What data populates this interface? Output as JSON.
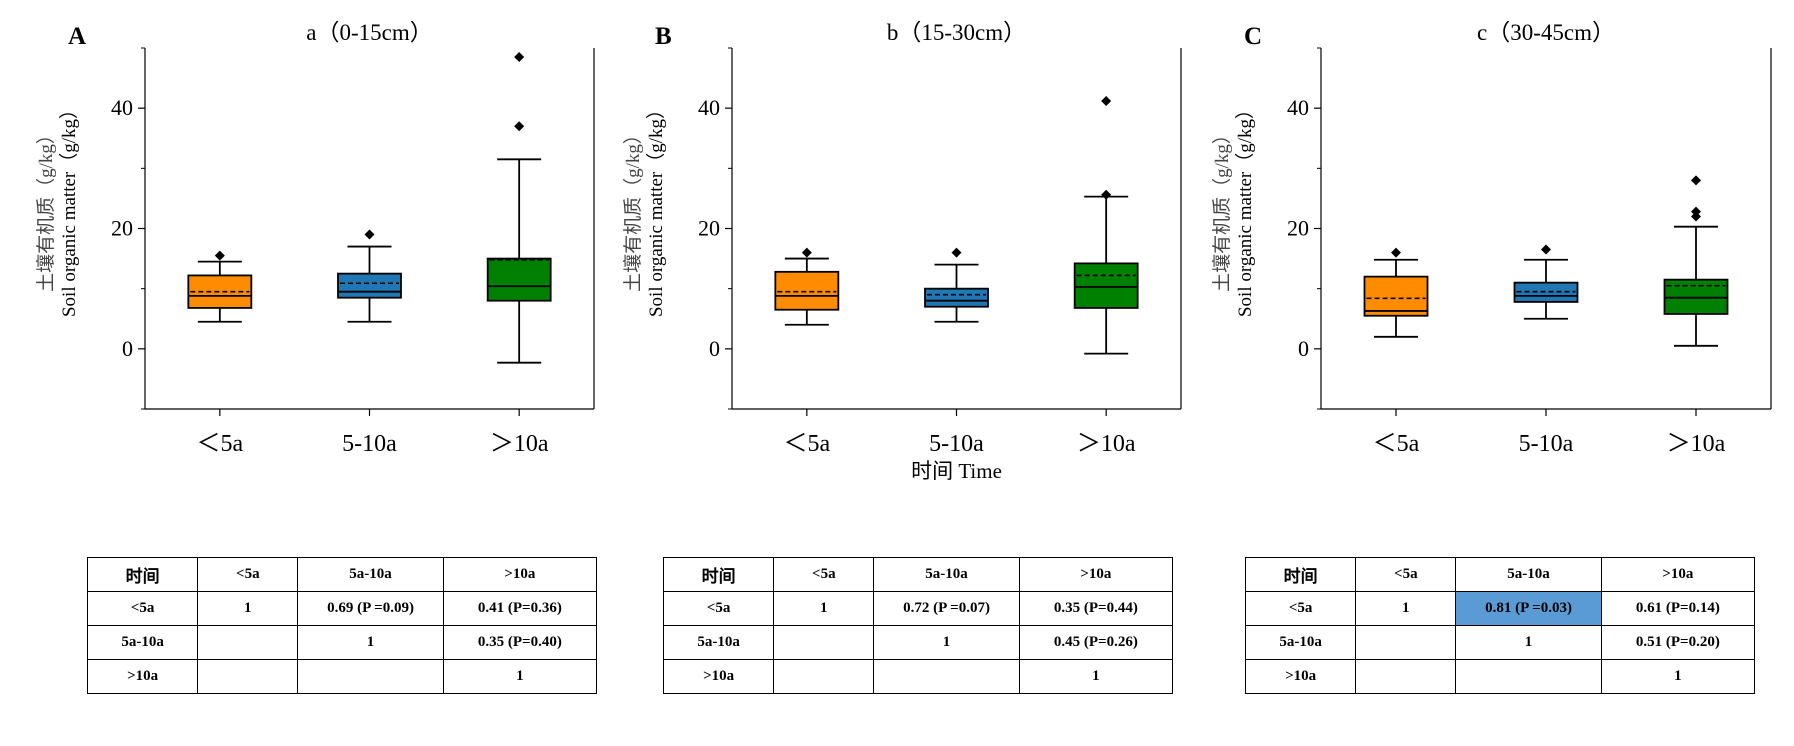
{
  "colors": {
    "lt5": "#ff8c00",
    "mid": "#1f77b4",
    "gt10": "#008000",
    "highlight": "#5b9bd5"
  },
  "shared_x_label": "时间 Time",
  "chart_data": [
    {
      "type": "box",
      "panel_letter": "A",
      "title": "a（0-15cm）",
      "ylabel_cn": "土壤有机质（g/kg）",
      "ylabel_en": "Soil organic matter（g/kg）",
      "xlabel": "",
      "ylim": [
        -10,
        50
      ],
      "yticks": [
        0,
        20,
        40
      ],
      "categories": [
        "＜5a",
        "5-10a",
        "＞10a"
      ],
      "boxes": [
        {
          "name": "＜5a",
          "whisker_low": 4.5,
          "q1": 6.8,
          "median": 8.8,
          "mean": 9.5,
          "q3": 12.2,
          "whisker_high": 14.5,
          "outliers": [
            15.5
          ]
        },
        {
          "name": "5-10a",
          "whisker_low": 4.5,
          "q1": 8.5,
          "median": 9.5,
          "mean": 10.9,
          "q3": 12.5,
          "whisker_high": 17.0,
          "outliers": [
            19.0
          ]
        },
        {
          "name": "＞10a",
          "whisker_low": -2.3,
          "q1": 8.0,
          "median": 10.4,
          "mean": 14.8,
          "q3": 15.0,
          "whisker_high": 31.5,
          "outliers": [
            37.0,
            48.5
          ]
        }
      ]
    },
    {
      "type": "box",
      "panel_letter": "B",
      "title": "b（15-30cm）",
      "ylabel_cn": "土壤有机质（g/kg）",
      "ylabel_en": "Soil organic matter（g/kg）",
      "xlabel": "时间 Time",
      "ylim": [
        -10,
        50
      ],
      "yticks": [
        0,
        20,
        40
      ],
      "categories": [
        "＜5a",
        "5-10a",
        "＞10a"
      ],
      "boxes": [
        {
          "name": "＜5a",
          "whisker_low": 4.0,
          "q1": 6.5,
          "median": 8.8,
          "mean": 9.5,
          "q3": 12.8,
          "whisker_high": 15.0,
          "outliers": [
            16.0
          ]
        },
        {
          "name": "5-10a",
          "whisker_low": 4.5,
          "q1": 7.0,
          "median": 8.0,
          "mean": 9.0,
          "q3": 10.0,
          "whisker_high": 14.0,
          "outliers": [
            16.0
          ]
        },
        {
          "name": "＞10a",
          "whisker_low": -0.8,
          "q1": 6.8,
          "median": 10.3,
          "mean": 12.2,
          "q3": 14.2,
          "whisker_high": 25.3,
          "outliers": [
            25.6,
            41.2
          ]
        }
      ]
    },
    {
      "type": "box",
      "panel_letter": "C",
      "title": "c（30-45cm）",
      "ylabel_cn": "土壤有机质（g/kg）",
      "ylabel_en": "Soil organic matter（g/kg）",
      "xlabel": "",
      "ylim": [
        -10,
        50
      ],
      "yticks": [
        0,
        20,
        40
      ],
      "categories": [
        "＜5a",
        "5-10a",
        "＞10a"
      ],
      "boxes": [
        {
          "name": "＜5a",
          "whisker_low": 2.0,
          "q1": 5.5,
          "median": 6.3,
          "mean": 8.4,
          "q3": 12.0,
          "whisker_high": 14.8,
          "outliers": [
            16.0
          ]
        },
        {
          "name": "5-10a",
          "whisker_low": 5.0,
          "q1": 7.8,
          "median": 8.8,
          "mean": 9.5,
          "q3": 11.0,
          "whisker_high": 14.8,
          "outliers": [
            16.5
          ]
        },
        {
          "name": "＞10a",
          "whisker_low": 0.5,
          "q1": 5.8,
          "median": 8.5,
          "mean": 10.5,
          "q3": 11.5,
          "whisker_high": 20.3,
          "outliers": [
            22.0,
            22.8,
            28.0
          ]
        }
      ]
    }
  ],
  "tables": [
    {
      "header": [
        "时间",
        "<5a",
        "5a-10a",
        ">10a"
      ],
      "rows": [
        [
          "<5a",
          "1",
          "0.69 (P =0.09)",
          "0.41 (P=0.36)"
        ],
        [
          "5a-10a",
          "",
          "1",
          "0.35 (P=0.40)"
        ],
        [
          ">10a",
          "",
          "",
          "1"
        ]
      ],
      "highlight": null
    },
    {
      "header": [
        "时间",
        "<5a",
        "5a-10a",
        ">10a"
      ],
      "rows": [
        [
          "<5a",
          "1",
          "0.72 (P =0.07)",
          "0.35 (P=0.44)"
        ],
        [
          "5a-10a",
          "",
          "1",
          "0.45 (P=0.26)"
        ],
        [
          ">10a",
          "",
          "",
          "1"
        ]
      ],
      "highlight": null
    },
    {
      "header": [
        "时间",
        "<5a",
        "5a-10a",
        ">10a"
      ],
      "rows": [
        [
          "<5a",
          "1",
          "0.81 (P =0.03)",
          "0.61 (P=0.14)"
        ],
        [
          "5a-10a",
          "",
          "1",
          "0.51 (P=0.20)"
        ],
        [
          ">10a",
          "",
          "",
          "1"
        ]
      ],
      "highlight": [
        0,
        2
      ]
    }
  ]
}
